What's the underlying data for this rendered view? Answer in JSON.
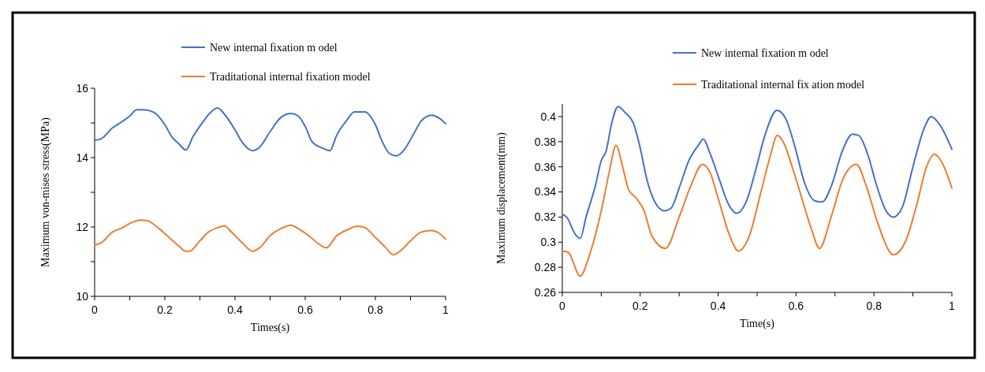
{
  "chart_data": [
    {
      "type": "line",
      "xlabel": "Times(s)",
      "ylabel": "Maximum  von-mises stress(MPa)",
      "xlim": [
        0,
        1
      ],
      "ylim": [
        10,
        16
      ],
      "xticks": [
        0,
        {
          "value": 0.1,
          "label": null
        },
        0.2,
        {
          "value": 0.3,
          "label": null
        },
        0.4,
        {
          "value": 0.5,
          "label": null
        },
        0.6,
        {
          "value": 0.7,
          "label": null
        },
        0.8,
        {
          "value": 0.9,
          "label": null
        },
        1
      ],
      "yticks": [
        10,
        {
          "value": 11,
          "label": null
        },
        12,
        {
          "value": 13,
          "label": null
        },
        14,
        {
          "value": 15,
          "label": null
        },
        16
      ],
      "legend": "top",
      "grid": false,
      "series": [
        {
          "name": "New internal fixation m odel",
          "color": "#4472c4",
          "x": [
            0,
            0.02,
            0.05,
            0.08,
            0.1,
            0.12,
            0.14,
            0.17,
            0.2,
            0.22,
            0.24,
            0.26,
            0.28,
            0.31,
            0.33,
            0.35,
            0.37,
            0.4,
            0.42,
            0.45,
            0.47,
            0.5,
            0.53,
            0.56,
            0.58,
            0.6,
            0.62,
            0.65,
            0.67,
            0.69,
            0.72,
            0.74,
            0.77,
            0.8,
            0.82,
            0.84,
            0.86,
            0.88,
            0.91,
            0.93,
            0.96,
            0.98,
            1
          ],
          "values": [
            14.5,
            14.55,
            14.85,
            15.05,
            15.2,
            15.38,
            15.38,
            15.3,
            14.95,
            14.6,
            14.4,
            14.22,
            14.6,
            15.05,
            15.3,
            15.43,
            15.25,
            14.8,
            14.45,
            14.2,
            14.3,
            14.75,
            15.15,
            15.27,
            15.2,
            14.9,
            14.45,
            14.27,
            14.2,
            14.65,
            15.1,
            15.32,
            15.32,
            14.95,
            14.45,
            14.12,
            14.05,
            14.2,
            14.7,
            15.05,
            15.22,
            15.15,
            14.98
          ]
        },
        {
          "name": "Traditational internal fixation model",
          "color": "#ed7d31",
          "x": [
            0,
            0.02,
            0.05,
            0.08,
            0.1,
            0.13,
            0.15,
            0.18,
            0.21,
            0.24,
            0.26,
            0.27,
            0.3,
            0.32,
            0.35,
            0.37,
            0.39,
            0.42,
            0.45,
            0.47,
            0.5,
            0.53,
            0.56,
            0.58,
            0.61,
            0.64,
            0.66,
            0.69,
            0.72,
            0.75,
            0.77,
            0.8,
            0.83,
            0.85,
            0.87,
            0.9,
            0.93,
            0.96,
            0.98,
            1
          ],
          "values": [
            11.48,
            11.55,
            11.85,
            11.98,
            12.1,
            12.2,
            12.18,
            11.98,
            11.72,
            11.45,
            11.3,
            11.3,
            11.6,
            11.82,
            11.98,
            12.03,
            11.85,
            11.55,
            11.3,
            11.4,
            11.75,
            11.95,
            12.05,
            11.95,
            11.75,
            11.5,
            11.4,
            11.75,
            11.92,
            12.02,
            11.98,
            11.7,
            11.4,
            11.2,
            11.3,
            11.6,
            11.85,
            11.9,
            11.83,
            11.65
          ]
        }
      ]
    },
    {
      "type": "line",
      "xlabel": "Time(s)",
      "ylabel": "Maximum  displacement(mm)",
      "xlim": [
        0,
        1
      ],
      "ylim": [
        0.26,
        0.41
      ],
      "xticks": [
        0,
        {
          "value": 0.1,
          "label": null
        },
        0.2,
        {
          "value": 0.3,
          "label": null
        },
        0.4,
        {
          "value": 0.5,
          "label": null
        },
        0.6,
        {
          "value": 0.7,
          "label": null
        },
        0.8,
        {
          "value": 0.9,
          "label": null
        },
        1
      ],
      "yticks": [
        0.26,
        0.28,
        0.3,
        0.32,
        0.34,
        0.36,
        0.38,
        0.4
      ],
      "legend": "top",
      "grid": false,
      "series": [
        {
          "name": "New internal fixation m odel",
          "color": "#4472c4",
          "x": [
            0,
            0.011,
            0.034,
            0.046,
            0.061,
            0.085,
            0.1,
            0.112,
            0.127,
            0.143,
            0.162,
            0.182,
            0.2,
            0.217,
            0.236,
            0.262,
            0.279,
            0.302,
            0.325,
            0.349,
            0.362,
            0.38,
            0.403,
            0.427,
            0.448,
            0.473,
            0.496,
            0.52,
            0.551,
            0.574,
            0.598,
            0.621,
            0.648,
            0.667,
            0.691,
            0.718,
            0.745,
            0.761,
            0.784,
            0.807,
            0.831,
            0.85,
            0.873,
            0.9,
            0.928,
            0.947,
            0.97,
            1
          ],
          "values": [
            0.322,
            0.32,
            0.306,
            0.303,
            0.32,
            0.345,
            0.365,
            0.372,
            0.395,
            0.408,
            0.403,
            0.395,
            0.375,
            0.35,
            0.333,
            0.325,
            0.327,
            0.345,
            0.365,
            0.377,
            0.382,
            0.37,
            0.35,
            0.33,
            0.323,
            0.333,
            0.357,
            0.385,
            0.405,
            0.398,
            0.375,
            0.348,
            0.333,
            0.332,
            0.345,
            0.372,
            0.386,
            0.385,
            0.37,
            0.345,
            0.325,
            0.32,
            0.328,
            0.36,
            0.39,
            0.4,
            0.393,
            0.374
          ]
        },
        {
          "name": "Traditational internal fix ation model",
          "color": "#ed7d31",
          "x": [
            0,
            0.015,
            0.046,
            0.07,
            0.1,
            0.12,
            0.138,
            0.155,
            0.17,
            0.19,
            0.21,
            0.23,
            0.265,
            0.3,
            0.33,
            0.36,
            0.38,
            0.4,
            0.43,
            0.452,
            0.48,
            0.51,
            0.535,
            0.552,
            0.57,
            0.59,
            0.61,
            0.64,
            0.66,
            0.69,
            0.72,
            0.755,
            0.78,
            0.81,
            0.85,
            0.88,
            0.91,
            0.935,
            0.955,
            0.98,
            1
          ],
          "values": [
            0.293,
            0.292,
            0.273,
            0.29,
            0.325,
            0.355,
            0.377,
            0.36,
            0.342,
            0.335,
            0.325,
            0.305,
            0.295,
            0.32,
            0.345,
            0.362,
            0.355,
            0.335,
            0.305,
            0.293,
            0.305,
            0.34,
            0.37,
            0.385,
            0.378,
            0.36,
            0.34,
            0.31,
            0.295,
            0.32,
            0.35,
            0.362,
            0.345,
            0.315,
            0.29,
            0.3,
            0.33,
            0.36,
            0.37,
            0.36,
            0.343
          ]
        }
      ]
    }
  ]
}
